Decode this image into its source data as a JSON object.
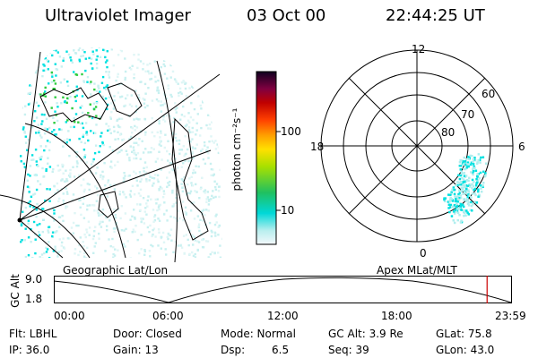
{
  "header": {
    "instrument": "Ultraviolet Imager",
    "date": "03 Oct 00",
    "time": "22:44:25 UT"
  },
  "colorbar": {
    "unit_label": "photon cm⁻²s⁻¹",
    "ticks": [
      "100",
      "10"
    ]
  },
  "polar": {
    "mlt_labels": [
      "12",
      "18",
      "6",
      "0"
    ],
    "lat_labels": [
      "60",
      "70",
      "80"
    ]
  },
  "panel_labels": {
    "left": "Geographic Lat/Lon",
    "right": "Apex  MLat/MLT"
  },
  "gc_alt": {
    "axis_label": "GC Alt",
    "ymax": "9.0",
    "ymin": "1.8",
    "xticks": [
      "00:00",
      "06:00",
      "12:00",
      "18:00",
      "23:59"
    ],
    "marker_time_hours": 22.74
  },
  "footer": {
    "flt": "Flt: LBHL",
    "door": "Door: Closed",
    "mode": "Mode: Normal",
    "gcalt": "GC Alt: 3.9 Re",
    "glat": "GLat:  75.8",
    "ip": "IP: 36.0",
    "gain": "Gain: 13",
    "dsp": "Dsp:",
    "dsp_value": "6.5",
    "seq": "Seq: 39",
    "glon": "GLon:  43.0"
  },
  "colors": {
    "cyan": "#00e0e0",
    "green": "#2ecc40",
    "marker": "#cc0000"
  }
}
